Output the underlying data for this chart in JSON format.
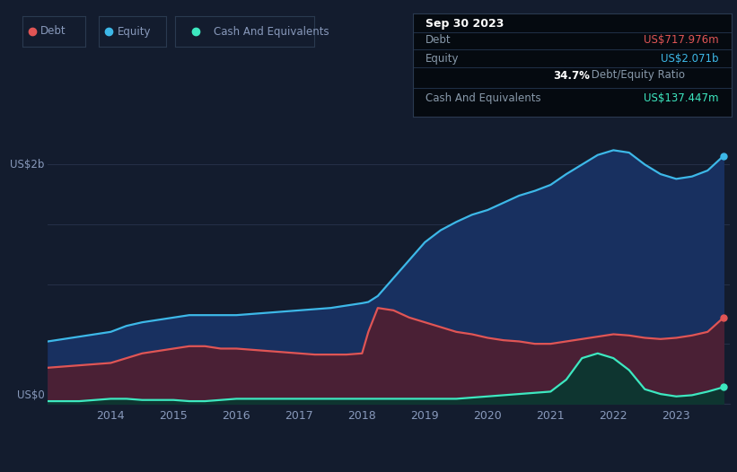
{
  "bg_color": "#131c2e",
  "grid_color": "#263048",
  "debt_color": "#e05555",
  "equity_color": "#3db8e8",
  "cash_color": "#3de8c0",
  "debt_fill": "#4a2035",
  "equity_fill": "#183060",
  "cash_fill": "#0e3530",
  "tooltip_bg": "#050a10",
  "tooltip_border": "#2a3550",
  "x_years": [
    2013.0,
    2013.25,
    2013.5,
    2013.75,
    2014.0,
    2014.25,
    2014.5,
    2014.75,
    2015.0,
    2015.25,
    2015.5,
    2015.75,
    2016.0,
    2016.25,
    2016.5,
    2016.75,
    2017.0,
    2017.25,
    2017.5,
    2017.75,
    2018.0,
    2018.1,
    2018.25,
    2018.5,
    2018.75,
    2019.0,
    2019.25,
    2019.5,
    2019.75,
    2020.0,
    2020.25,
    2020.5,
    2020.75,
    2021.0,
    2021.25,
    2021.5,
    2021.75,
    2022.0,
    2022.25,
    2022.5,
    2022.75,
    2023.0,
    2023.25,
    2023.5,
    2023.75
  ],
  "equity_vals": [
    0.52,
    0.54,
    0.56,
    0.58,
    0.6,
    0.65,
    0.68,
    0.7,
    0.72,
    0.74,
    0.74,
    0.74,
    0.74,
    0.75,
    0.76,
    0.77,
    0.78,
    0.79,
    0.8,
    0.82,
    0.84,
    0.85,
    0.9,
    1.05,
    1.2,
    1.35,
    1.45,
    1.52,
    1.58,
    1.62,
    1.68,
    1.74,
    1.78,
    1.83,
    1.92,
    2.0,
    2.08,
    2.12,
    2.1,
    2.0,
    1.92,
    1.88,
    1.9,
    1.95,
    2.071
  ],
  "debt_vals": [
    0.3,
    0.31,
    0.32,
    0.33,
    0.34,
    0.38,
    0.42,
    0.44,
    0.46,
    0.48,
    0.48,
    0.46,
    0.46,
    0.45,
    0.44,
    0.43,
    0.42,
    0.41,
    0.41,
    0.41,
    0.42,
    0.6,
    0.8,
    0.78,
    0.72,
    0.68,
    0.64,
    0.6,
    0.58,
    0.55,
    0.53,
    0.52,
    0.5,
    0.5,
    0.52,
    0.54,
    0.56,
    0.58,
    0.57,
    0.55,
    0.54,
    0.55,
    0.57,
    0.6,
    0.718
  ],
  "cash_vals": [
    0.02,
    0.02,
    0.02,
    0.03,
    0.04,
    0.04,
    0.03,
    0.03,
    0.03,
    0.02,
    0.02,
    0.03,
    0.04,
    0.04,
    0.04,
    0.04,
    0.04,
    0.04,
    0.04,
    0.04,
    0.04,
    0.04,
    0.04,
    0.04,
    0.04,
    0.04,
    0.04,
    0.04,
    0.05,
    0.06,
    0.07,
    0.08,
    0.09,
    0.1,
    0.2,
    0.38,
    0.42,
    0.38,
    0.28,
    0.12,
    0.08,
    0.06,
    0.07,
    0.1,
    0.137
  ],
  "tooltip_date": "Sep 30 2023",
  "tooltip_debt_label": "Debt",
  "tooltip_debt_value": "US$717.976m",
  "tooltip_equity_label": "Equity",
  "tooltip_equity_value": "US$2.071b",
  "tooltip_ratio": "34.7%",
  "tooltip_ratio_text": " Debt/Equity Ratio",
  "tooltip_cash_label": "Cash And Equivalents",
  "tooltip_cash_value": "US$137.447m",
  "legend_items": [
    "Debt",
    "Equity",
    "Cash And Equivalents"
  ],
  "legend_colors": [
    "#e05555",
    "#3db8e8",
    "#3de8c0"
  ],
  "x_tick_positions": [
    2014,
    2015,
    2016,
    2017,
    2018,
    2019,
    2020,
    2021,
    2022,
    2023
  ],
  "x_tick_labels": [
    "2014",
    "2015",
    "2016",
    "2017",
    "2018",
    "2019",
    "2020",
    "2021",
    "2022",
    "2023"
  ],
  "ylim": [
    0,
    2.35
  ],
  "xlim": [
    2013.0,
    2023.85
  ]
}
